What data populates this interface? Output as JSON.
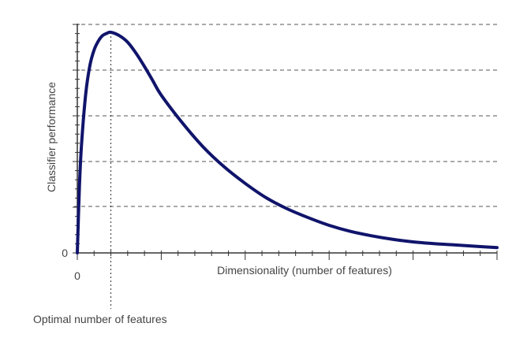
{
  "chart_data": {
    "type": "line",
    "xlabel": "Dimensionality (number of features)",
    "ylabel": "Classifier performance",
    "x_tick_labels": [
      "0"
    ],
    "y_tick_labels": [
      "0"
    ],
    "optimum_label": "Optimal number of features",
    "xlim": [
      0,
      1
    ],
    "ylim": [
      0,
      1
    ],
    "grid": "horizontal dashed",
    "optimum_x": 0.08,
    "series": [
      {
        "x": [
          0,
          0.005,
          0.01,
          0.02,
          0.03,
          0.04,
          0.05,
          0.06,
          0.07,
          0.08,
          0.1,
          0.12,
          0.14,
          0.16,
          0.18,
          0.2,
          0.25,
          0.3,
          0.35,
          0.4,
          0.45,
          0.5,
          0.55,
          0.6,
          0.65,
          0.7,
          0.75,
          0.8,
          0.85,
          0.9,
          0.95,
          1.0
        ],
        "values": [
          0,
          0.3,
          0.49,
          0.72,
          0.85,
          0.92,
          0.96,
          0.985,
          0.995,
          1.0,
          0.985,
          0.955,
          0.905,
          0.845,
          0.78,
          0.715,
          0.59,
          0.48,
          0.39,
          0.315,
          0.25,
          0.2,
          0.16,
          0.125,
          0.098,
          0.078,
          0.062,
          0.05,
          0.042,
          0.036,
          0.03,
          0.024
        ]
      }
    ],
    "colors": {
      "curve": "#10146b"
    }
  }
}
